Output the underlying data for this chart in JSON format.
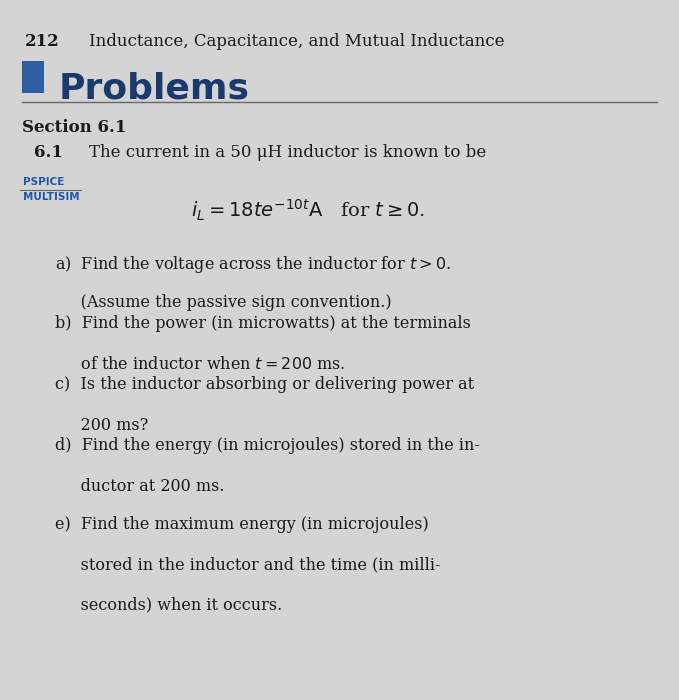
{
  "page_number": "212",
  "chapter_title": "Inductance, Capacitance, and Mutual Inductance",
  "section_header": "Problems",
  "section_number": "Section 6.1",
  "problem_number": "6.1",
  "problem_intro": "The current in a 50 μH inductor is known to be",
  "pspice_label": "PSPICE",
  "multisim_label": "MULTISIM",
  "bg_color": "#d4d4d4",
  "square_color": "#2E5FA3",
  "problems_color": "#1a3a6e",
  "text_color": "#1a1a1a",
  "pspice_color": "#2255aa",
  "multisim_color": "#2255aa"
}
